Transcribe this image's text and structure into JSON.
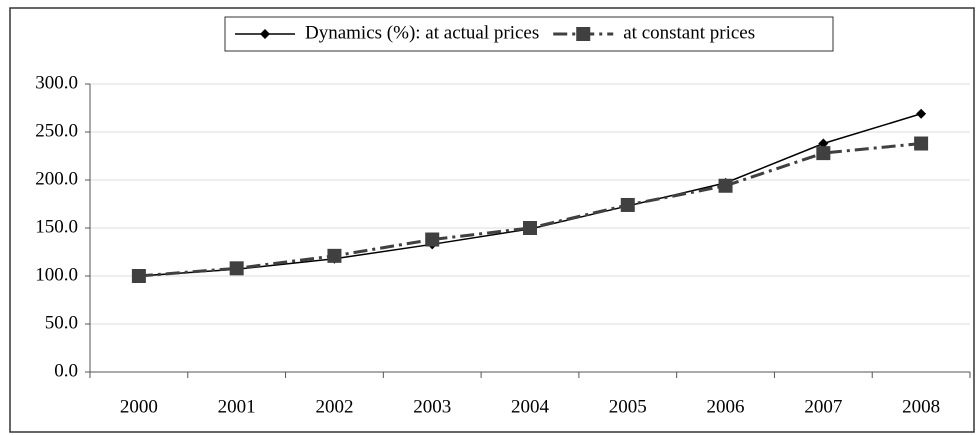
{
  "chart_data": {
    "type": "line",
    "categories": [
      "2000",
      "2001",
      "2002",
      "2003",
      "2004",
      "2005",
      "2006",
      "2007",
      "2008"
    ],
    "series": [
      {
        "name": "Dynamics (%): at actual prices",
        "color": "#000000",
        "marker": "diamond",
        "dash": "solid",
        "values": [
          100,
          107,
          118,
          133,
          149,
          173,
          197,
          238,
          269
        ]
      },
      {
        "name": "at constant prices",
        "color": "#404040",
        "marker": "square",
        "dash": "dashdot",
        "values": [
          100,
          108,
          121,
          138,
          150,
          174,
          194,
          228,
          238
        ]
      }
    ],
    "ylim": [
      0,
      300
    ],
    "yticks": [
      {
        "value": 0,
        "label": "0.0"
      },
      {
        "value": 50,
        "label": "50.0"
      },
      {
        "value": 100,
        "label": "100.0"
      },
      {
        "value": 150,
        "label": "150.0"
      },
      {
        "value": 200,
        "label": "200.0"
      },
      {
        "value": 250,
        "label": "250.0"
      },
      {
        "value": 300,
        "label": "300.0"
      }
    ],
    "grid": true,
    "legend": "top"
  }
}
